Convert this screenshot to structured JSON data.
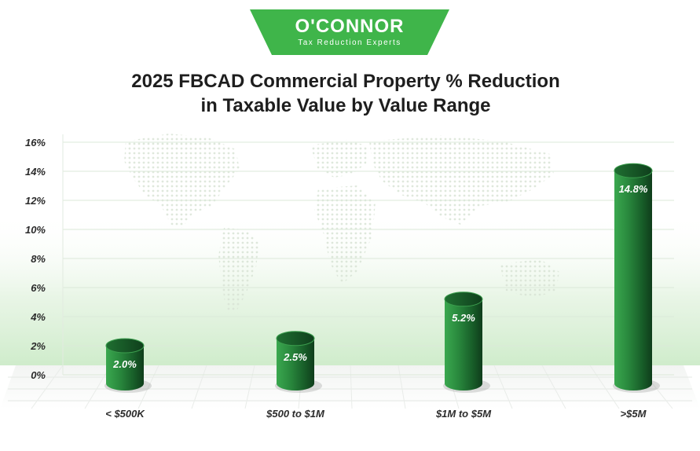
{
  "brand": {
    "name": "O'CONNOR",
    "tagline": "Tax Reduction Experts",
    "color": "#3fb54a"
  },
  "chart_data": {
    "type": "bar",
    "title_lines": [
      "2025 FBCAD Commercial Property % Reduction",
      "in Taxable Value by Value Range"
    ],
    "categories": [
      "< $500K",
      "$500 to $1M",
      "$1M to $5M",
      ">$5M"
    ],
    "values": [
      2.0,
      2.5,
      5.2,
      14.8
    ],
    "value_labels": [
      "2.0%",
      "2.5%",
      "5.2%",
      "14.8%"
    ],
    "y_ticks": [
      "0%",
      "2%",
      "4%",
      "6%",
      "8%",
      "10%",
      "12%",
      "14%",
      "16%"
    ],
    "y_tick_values": [
      0,
      2,
      4,
      6,
      8,
      10,
      12,
      14,
      16
    ],
    "ylim": [
      0,
      16
    ],
    "xlabel": "",
    "ylabel": "",
    "grid": true,
    "bar_style": "3d-cylinder",
    "bar_color": "#2a8a3e",
    "bar_color_dark": "#123f1e",
    "background_map": true
  }
}
